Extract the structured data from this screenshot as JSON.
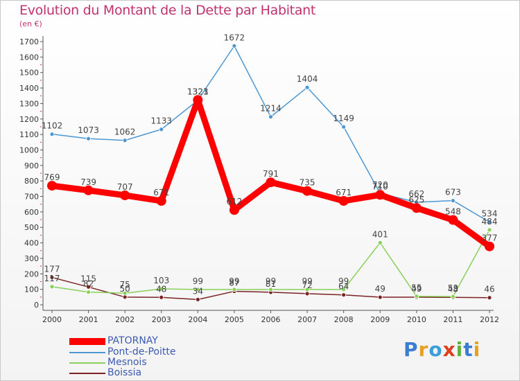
{
  "chart_data": {
    "type": "line",
    "title": "Evolution du Montant de la Dette par Habitant",
    "ylabel": "(en €)",
    "xlabel": "",
    "x": [
      "2000",
      "2001",
      "2002",
      "2003",
      "2004",
      "2005",
      "2006",
      "2007",
      "2008",
      "2009",
      "2010",
      "2011",
      "2012"
    ],
    "ylim": [
      0,
      1700
    ],
    "yticks": [
      0,
      100,
      200,
      300,
      400,
      500,
      600,
      700,
      800,
      900,
      1000,
      1100,
      1200,
      1300,
      1400,
      1500,
      1600,
      1700
    ],
    "grid": false,
    "legend_position": "bottom-left",
    "series": [
      {
        "name": "PATORNAY",
        "color": "#ff0000",
        "values": [
          769,
          739,
          707,
          671,
          1323,
          612,
          791,
          735,
          671,
          710,
          625,
          548,
          377
        ]
      },
      {
        "name": "Pont-de-Poitte",
        "color": "#4d97d2",
        "values": [
          1102,
          1073,
          1062,
          1133,
          1321,
          1672,
          1214,
          1404,
          1149,
          720,
          662,
          673,
          534
        ]
      },
      {
        "name": "Mesnois",
        "color": "#88d05a",
        "values": [
          117,
          82,
          75,
          103,
          99,
          99,
          99,
          99,
          99,
          401,
          55,
          53,
          484
        ]
      },
      {
        "name": "Boissia",
        "color": "#7b2323",
        "values": [
          177,
          115,
          50,
          48,
          34,
          87,
          81,
          72,
          64,
          49,
          49,
          48,
          46
        ]
      }
    ]
  },
  "logo": {
    "letters": [
      "P",
      "r",
      "o",
      "x",
      "i",
      "t",
      "i"
    ],
    "colors": [
      "#3a7dd1",
      "#e8a020",
      "#3a9fd8",
      "#e04020",
      "#60b040",
      "#3a7dd1",
      "#e8a020"
    ]
  }
}
